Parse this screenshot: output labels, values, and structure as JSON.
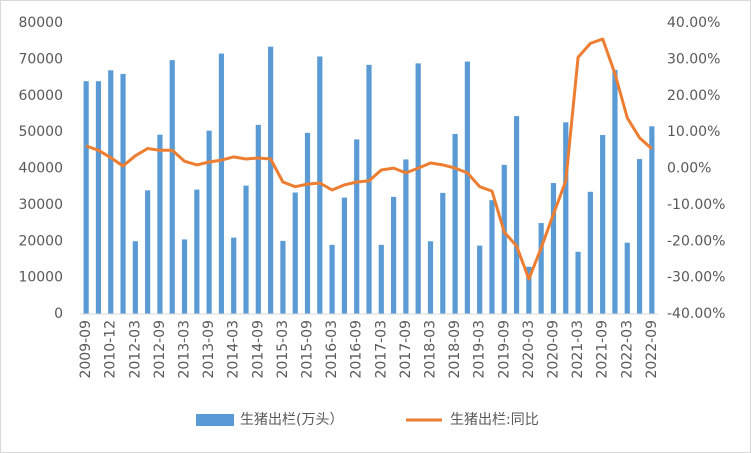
{
  "chart_data": {
    "type": "bar_line",
    "categories": [
      "2009-09",
      null,
      "2010-12",
      null,
      "2012-03",
      null,
      "2012-09",
      null,
      "2013-03",
      null,
      "2013-09",
      null,
      "2014-03",
      null,
      "2014-09",
      null,
      "2015-03",
      null,
      "2015-09",
      null,
      "2016-03",
      null,
      "2016-09",
      null,
      "2017-03",
      null,
      "2017-09",
      null,
      "2018-03",
      null,
      "2018-09",
      null,
      "2019-03",
      null,
      "2019-09",
      null,
      "2020-03",
      null,
      "2020-09",
      null,
      "2021-03",
      null,
      "2021-09",
      null,
      "2022-03",
      null,
      "2022-09"
    ],
    "series": [
      {
        "name": "生猪出栏(万头）",
        "type": "bar",
        "color": "#5b9bd5",
        "values": [
          64000,
          64000,
          67000,
          66000,
          20000,
          34000,
          49300,
          69800,
          20500,
          34200,
          50400,
          71600,
          21000,
          35300,
          52000,
          73500,
          20100,
          33400,
          49800,
          70800,
          19000,
          32000,
          48000,
          68500,
          19000,
          32200,
          42500,
          68900,
          20000,
          33300,
          49500,
          69400,
          18800,
          31300,
          41000,
          54400,
          13000,
          25000,
          36000,
          52700,
          17100,
          33600,
          49200,
          67100,
          19600,
          42600,
          51600
        ]
      },
      {
        "name": "生猪出栏:同比",
        "type": "line",
        "axis": "y2",
        "color": "#ed7d31",
        "values": [
          6.2,
          5,
          3,
          0.7,
          3.5,
          5.5,
          5,
          5,
          2,
          1,
          1.8,
          2.3,
          3.2,
          2.6,
          2.9,
          2.6,
          -3.7,
          -5,
          -4.3,
          -4,
          -5.9,
          -4.5,
          -3.7,
          -3.4,
          -0.4,
          0.1,
          -1.2,
          0.1,
          1.5,
          1,
          0.1,
          -1.2,
          -5,
          -6.2,
          -17.5,
          -21.3,
          -30.4,
          -21.8,
          -12.5,
          -3.4,
          30.6,
          34.4,
          35.6,
          26,
          13.9,
          8.4,
          5.4
        ]
      }
    ],
    "ylim": [
      0,
      80000
    ],
    "yticks": [
      0,
      10000,
      20000,
      30000,
      40000,
      50000,
      60000,
      70000,
      80000
    ],
    "y2lim": [
      -40,
      40
    ],
    "y2ticks": [
      {
        "value": -40,
        "label": "-40.00%"
      },
      {
        "value": -30,
        "label": "-30.00%"
      },
      {
        "value": -20,
        "label": "-20.00%"
      },
      {
        "value": -10,
        "label": "-10.00%"
      },
      {
        "value": 0,
        "label": "0.00%"
      },
      {
        "value": 10,
        "label": "10.00%"
      },
      {
        "value": 20,
        "label": "20.00%"
      },
      {
        "value": 30,
        "label": "30.00%"
      },
      {
        "value": 40,
        "label": "40.00%"
      }
    ],
    "legend": "bottom",
    "grid": false
  }
}
